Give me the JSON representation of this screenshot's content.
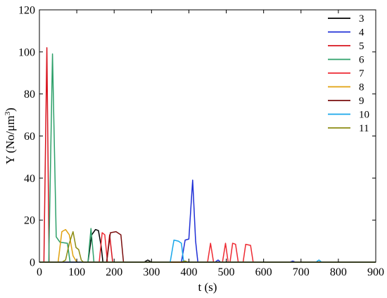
{
  "chart_data": {
    "type": "line",
    "title": "",
    "xlabel": "t (s)",
    "ylabel_main": "Y (No/μm",
    "ylabel_sup": "3",
    "ylabel_tail": ")",
    "xlim": [
      0,
      900
    ],
    "ylim": [
      0,
      120
    ],
    "xticks": [
      "0",
      "100",
      "200",
      "300",
      "400",
      "500",
      "600",
      "700",
      "800",
      "900"
    ],
    "yticks": [
      "0",
      "20",
      "40",
      "60",
      "80",
      "100",
      "120"
    ],
    "grid": false,
    "legend_position": "top-right",
    "series": [
      {
        "name": "3",
        "color": "#000000",
        "points": [
          [
            0,
            0
          ],
          [
            130,
            0
          ],
          [
            140,
            13
          ],
          [
            150,
            15.5
          ],
          [
            158,
            15
          ],
          [
            165,
            8
          ],
          [
            170,
            0
          ],
          [
            280,
            0
          ],
          [
            290,
            1
          ],
          [
            300,
            0
          ],
          [
            380,
            0
          ],
          [
            388,
            0.5
          ],
          [
            395,
            0
          ],
          [
            900,
            0
          ]
        ]
      },
      {
        "name": "4",
        "color": "#1f2fd6",
        "points": [
          [
            0,
            0
          ],
          [
            380,
            0
          ],
          [
            390,
            10.5
          ],
          [
            400,
            11
          ],
          [
            410,
            39
          ],
          [
            418,
            10
          ],
          [
            424,
            0
          ],
          [
            470,
            0
          ],
          [
            478,
            1
          ],
          [
            485,
            0
          ],
          [
            670,
            0
          ],
          [
            678,
            0.5
          ],
          [
            685,
            0
          ],
          [
            900,
            0
          ]
        ]
      },
      {
        "name": "5",
        "color": "#d8141e",
        "points": [
          [
            0,
            0
          ],
          [
            12,
            0
          ],
          [
            20,
            102
          ],
          [
            26,
            0
          ],
          [
            180,
            0
          ],
          [
            188,
            13
          ],
          [
            196,
            0
          ],
          [
            900,
            0
          ]
        ]
      },
      {
        "name": "6",
        "color": "#2ea06a",
        "points": [
          [
            0,
            0
          ],
          [
            25,
            0
          ],
          [
            35,
            99
          ],
          [
            45,
            12
          ],
          [
            55,
            9.5
          ],
          [
            75,
            9
          ],
          [
            82,
            0
          ],
          [
            130,
            0
          ],
          [
            138,
            16
          ],
          [
            146,
            0
          ],
          [
            900,
            0
          ]
        ]
      },
      {
        "name": "7",
        "color": "#ee2a32",
        "points": [
          [
            0,
            0
          ],
          [
            160,
            0
          ],
          [
            168,
            14
          ],
          [
            175,
            13
          ],
          [
            182,
            0
          ],
          [
            450,
            0
          ],
          [
            458,
            9
          ],
          [
            466,
            0
          ],
          [
            490,
            0
          ],
          [
            498,
            9
          ],
          [
            505,
            0
          ],
          [
            510,
            0
          ],
          [
            517,
            9
          ],
          [
            525,
            8.5
          ],
          [
            532,
            0
          ],
          [
            545,
            0
          ],
          [
            552,
            8.5
          ],
          [
            565,
            8
          ],
          [
            572,
            0
          ],
          [
            900,
            0
          ]
        ]
      },
      {
        "name": "8",
        "color": "#e0a10e",
        "points": [
          [
            0,
            0
          ],
          [
            50,
            0
          ],
          [
            60,
            14.5
          ],
          [
            70,
            15.5
          ],
          [
            80,
            13
          ],
          [
            90,
            3
          ],
          [
            100,
            0
          ],
          [
            900,
            0
          ]
        ]
      },
      {
        "name": "9",
        "color": "#7a0e0e",
        "points": [
          [
            0,
            0
          ],
          [
            180,
            0
          ],
          [
            190,
            14
          ],
          [
            205,
            14.5
          ],
          [
            218,
            13
          ],
          [
            225,
            0
          ],
          [
            900,
            0
          ]
        ]
      },
      {
        "name": "10",
        "color": "#18a7ea",
        "points": [
          [
            0,
            0
          ],
          [
            350,
            0
          ],
          [
            360,
            10.5
          ],
          [
            372,
            10
          ],
          [
            380,
            9
          ],
          [
            386,
            0
          ],
          [
            740,
            0
          ],
          [
            748,
            1
          ],
          [
            755,
            0
          ],
          [
            900,
            0
          ]
        ]
      },
      {
        "name": "11",
        "color": "#8c8c12",
        "points": [
          [
            0,
            0
          ],
          [
            60,
            0
          ],
          [
            70,
            1
          ],
          [
            80,
            9
          ],
          [
            90,
            14.5
          ],
          [
            98,
            7
          ],
          [
            105,
            6
          ],
          [
            112,
            1
          ],
          [
            118,
            0
          ],
          [
            380,
            0
          ],
          [
            390,
            0.5
          ],
          [
            398,
            0
          ],
          [
            900,
            0
          ]
        ]
      }
    ]
  }
}
